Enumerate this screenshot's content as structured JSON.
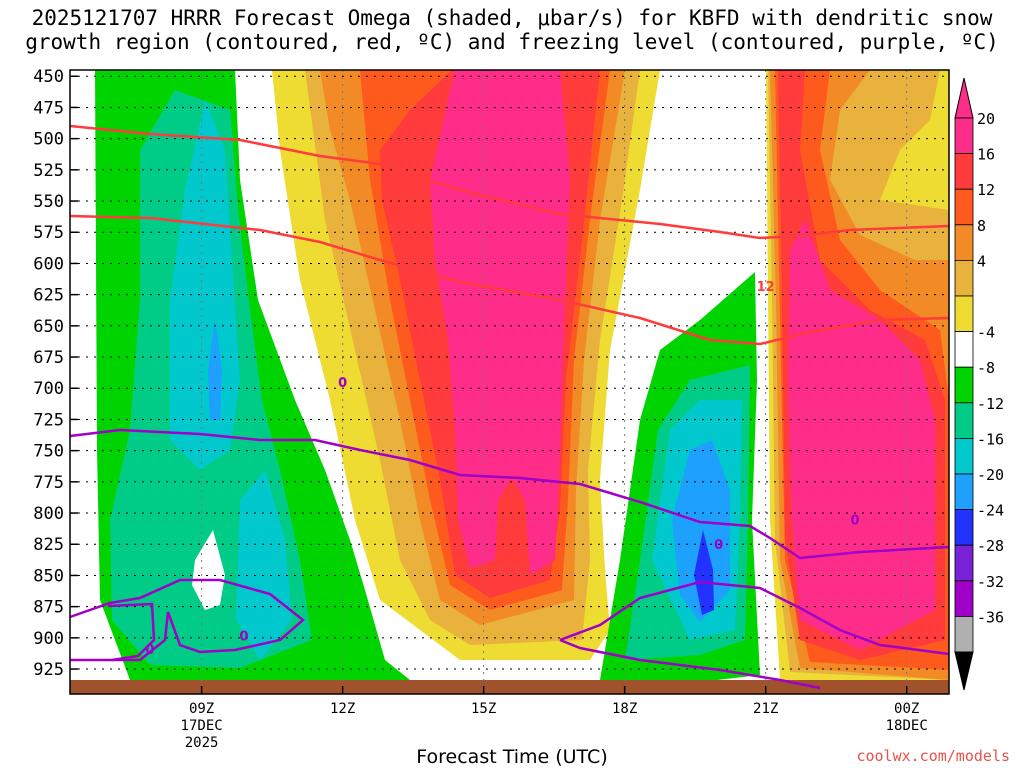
{
  "title_line1": "2025121707 HRRR Forecast Omega (shaded, μbar/s) for KBFD with dendritic snow",
  "title_line2": "growth region (contoured, red, ºC) and freezing level (contoured, purple, ºC)",
  "x_axis_title": "Forecast Time (UTC)",
  "credit": "coolwx.com/models",
  "chart_data": {
    "type": "heatmap",
    "y_ticks": [
      450,
      475,
      500,
      525,
      550,
      575,
      600,
      625,
      650,
      675,
      700,
      725,
      750,
      775,
      800,
      825,
      850,
      875,
      900,
      925
    ],
    "ylim": [
      445,
      945
    ],
    "xlim": [
      6.2,
      24.9
    ],
    "x_ticks": [
      {
        "t": 9,
        "lines": [
          "09Z",
          "17DEC",
          "2025"
        ]
      },
      {
        "t": 12,
        "lines": [
          "12Z"
        ]
      },
      {
        "t": 15,
        "lines": [
          "15Z"
        ]
      },
      {
        "t": 18,
        "lines": [
          "18Z"
        ]
      },
      {
        "t": 21,
        "lines": [
          "21Z"
        ]
      },
      {
        "t": 24,
        "lines": [
          "00Z",
          "18DEC"
        ]
      }
    ],
    "colorbar": {
      "labels": [
        "20",
        "16",
        "12",
        "8",
        "4",
        "-4",
        "-8",
        "-12",
        "-16",
        "-20",
        "-24",
        "-28",
        "-32",
        "-36"
      ],
      "colors": [
        "#ff2d8a",
        "#ff3b3b",
        "#ff5a1e",
        "#f28a25",
        "#e8b23c",
        "#eedc33",
        "#ffffff",
        "#00d400",
        "#00cc88",
        "#00c8cc",
        "#1ea0ff",
        "#2233ff",
        "#7a22d8",
        "#a000c8",
        "#b0b0b0"
      ],
      "upper_arrow": "#ff2d8a",
      "lower_arrow": "#000000"
    },
    "contour_labels": [
      {
        "text": "12",
        "color": "#ff3b3b",
        "t": 21.0,
        "p": 618
      },
      {
        "text": "0",
        "color": "#a000c8",
        "t": 12.0,
        "p": 695
      },
      {
        "text": "0",
        "color": "#a000c8",
        "t": 22.9,
        "p": 805
      },
      {
        "text": "0",
        "color": "#a000c8",
        "t": 20.0,
        "p": 825
      },
      {
        "text": "0",
        "color": "#a000c8",
        "t": 9.9,
        "p": 898
      },
      {
        "text": "0",
        "color": "#a000c8",
        "t": 7.9,
        "p": 909
      }
    ]
  }
}
